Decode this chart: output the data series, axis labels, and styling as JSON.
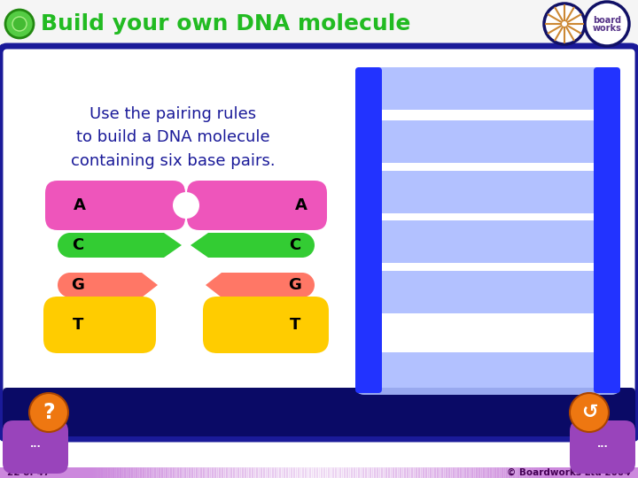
{
  "title": "Build your own DNA molecule",
  "title_color": "#22bb22",
  "bg_color": "#ffffff",
  "footer_text_left": "22 of 47",
  "footer_text_right": "© Boardworks Ltd 2004",
  "instruction_text": "Use the pairing rules\nto build a DNA molecule\ncontaining six base pairs.",
  "base_colors": {
    "A": "#ee55bb",
    "C": "#33cc33",
    "G": "#ff7766",
    "T": "#ffcc00"
  },
  "dna_rail_color": "#2233ff",
  "dna_rung_color": "#aabbff",
  "panel_border": "#1a1a99",
  "panel_bg": "#ffffff",
  "header_bg": "#f0f0f0",
  "footer_bar_color": "#cc88dd",
  "orange_btn": "#ee7711",
  "nav_btn_color": "#9944bb"
}
